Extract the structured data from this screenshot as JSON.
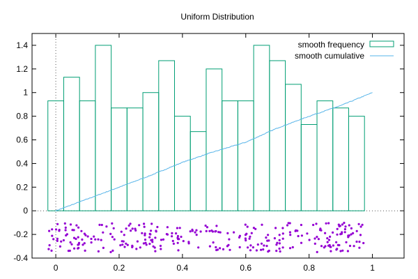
{
  "chart_data": {
    "type": "bar",
    "title": "Uniform Distribution",
    "xlabel": "",
    "ylabel": "",
    "xlim": [
      -0.075,
      1.1
    ],
    "ylim": [
      -0.4,
      1.5
    ],
    "xticks": [
      0,
      0.2,
      0.4,
      0.6,
      0.8,
      1
    ],
    "xtick_labels": [
      "0",
      "0.2",
      "0.4",
      "0.6",
      "0.8",
      "1"
    ],
    "yticks": [
      -0.4,
      -0.2,
      0,
      0.2,
      0.4,
      0.6,
      0.8,
      1,
      1.2,
      1.4
    ],
    "ytick_labels": [
      "-0.4",
      "-0.2",
      "0",
      "0.2",
      "0.4",
      "0.6",
      "0.8",
      "1",
      "1.2",
      "1.4"
    ],
    "zero_axes": "dotted",
    "grid": false,
    "legend_position": "top-right",
    "colors": {
      "frequency": "#009e73",
      "cumulative": "#56b4e9",
      "points": "#9400d3"
    },
    "series": [
      {
        "name": "smooth frequency",
        "kind": "histogram-outline",
        "bin_starts": [
          -0.025,
          0.025,
          0.075,
          0.125,
          0.175,
          0.225,
          0.275,
          0.325,
          0.375,
          0.425,
          0.475,
          0.525,
          0.575,
          0.625,
          0.675,
          0.725,
          0.775,
          0.825,
          0.875,
          0.925
        ],
        "bin_width": 0.05,
        "values": [
          0.93,
          1.13,
          0.93,
          1.4,
          0.87,
          0.87,
          1.0,
          1.27,
          0.8,
          0.67,
          1.2,
          0.93,
          0.93,
          1.4,
          1.27,
          1.07,
          0.73,
          0.93,
          0.87,
          0.8
        ]
      },
      {
        "name": "smooth cumulative",
        "kind": "line",
        "x": [
          0,
          0.1,
          0.2,
          0.3,
          0.4,
          0.5,
          0.6,
          0.7,
          0.8,
          0.9,
          1.0
        ],
        "y": [
          0,
          0.1,
          0.2,
          0.3,
          0.41,
          0.5,
          0.58,
          0.7,
          0.8,
          0.89,
          1.0
        ]
      },
      {
        "name": "",
        "kind": "scatter",
        "x_range": [
          -0.025,
          0.975
        ],
        "y_range": [
          -0.35,
          -0.1
        ],
        "count": 300
      }
    ]
  }
}
